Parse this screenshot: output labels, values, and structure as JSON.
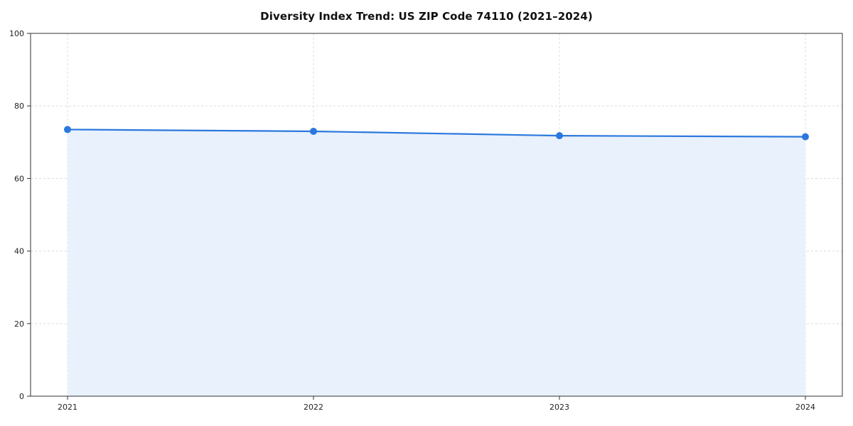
{
  "chart_data": {
    "type": "line",
    "title": "Diversity Index Trend: US ZIP Code 74110 (2021–2024)",
    "categories": [
      "2021",
      "2022",
      "2023",
      "2024"
    ],
    "series": [
      {
        "name": "Diversity Index",
        "values": [
          73.5,
          73.0,
          71.8,
          71.5
        ]
      }
    ],
    "xlabel": "",
    "ylabel": "",
    "ylim": [
      0,
      100
    ],
    "yticks": [
      0,
      20,
      40,
      60,
      80,
      100
    ],
    "grid": true,
    "grid_style": "dashed",
    "legend": "none",
    "colors": {
      "line": "#2b78dd",
      "marker": "#2b78dd",
      "area_fill": "#e9f1fd",
      "grid": "#dcdcdc",
      "spine": "#333333",
      "tick_text": "#222222"
    }
  }
}
